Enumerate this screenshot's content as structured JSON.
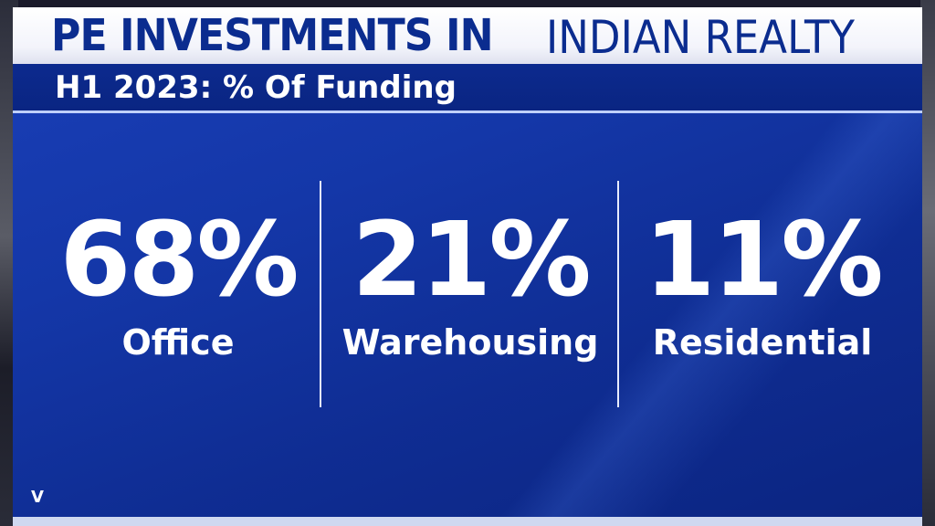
{
  "title": {
    "bold": "PE INVESTMENTS IN",
    "light": "INDIAN REALTY"
  },
  "subtitle": "H1 2023: % Of Funding",
  "stats": [
    {
      "value": "68%",
      "label": "Office"
    },
    {
      "value": "21%",
      "label": "Warehousing"
    },
    {
      "value": "11%",
      "label": "Residential"
    }
  ],
  "logo": "V",
  "colors": {
    "panel": "#1437a8",
    "title_text": "#0b2c8f",
    "text": "#ffffff"
  }
}
